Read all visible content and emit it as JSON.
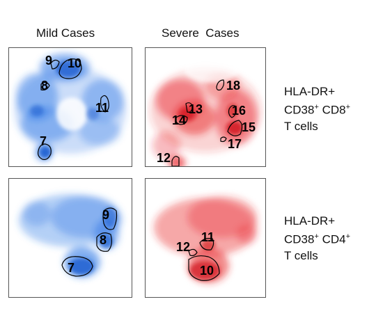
{
  "columns": {
    "mild": "Mild Cases",
    "severe": "Severe  Cases"
  },
  "rows": {
    "cd8": {
      "line1": "HLA-DR+",
      "line2_a": "CD38",
      "line2_b": " CD8",
      "line3": "T cells"
    },
    "cd4": {
      "line1": "HLA-DR+",
      "line2_a": "CD38",
      "line2_b": " CD4",
      "line3": "T cells"
    },
    "sup": "+"
  },
  "colors": {
    "mild": "#2f78e6",
    "severe": "#e8242a",
    "outline": "#000000"
  },
  "panels": {
    "mild_cd8": {
      "clusters": [
        "9",
        "10",
        "8",
        "11",
        "7"
      ]
    },
    "severe_cd8": {
      "clusters": [
        "18",
        "13",
        "14",
        "16",
        "15",
        "17",
        "12"
      ]
    },
    "mild_cd4": {
      "clusters": [
        "9",
        "8",
        "7"
      ]
    },
    "severe_cd4": {
      "clusters": [
        "11",
        "12",
        "10"
      ]
    }
  }
}
